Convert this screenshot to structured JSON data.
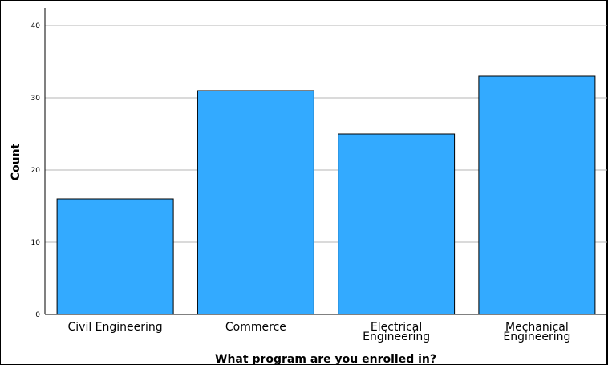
{
  "chart_data": {
    "type": "bar",
    "categories": [
      "Civil Engineering",
      "Commerce",
      "Electrical Engineering",
      "Mechanical Engineering"
    ],
    "category_label_lines": [
      [
        "Civil Engineering"
      ],
      [
        "Commerce"
      ],
      [
        "Electrical",
        "Engineering"
      ],
      [
        "Mechanical",
        "Engineering"
      ]
    ],
    "values": [
      16,
      31,
      25,
      33
    ],
    "xlabel": "What program are you enrolled in?",
    "ylabel": "Count",
    "ylim": [
      0,
      40
    ],
    "yticks": [
      0,
      10,
      20,
      30,
      40
    ],
    "grid": true,
    "bar_color": "#33aaff"
  }
}
